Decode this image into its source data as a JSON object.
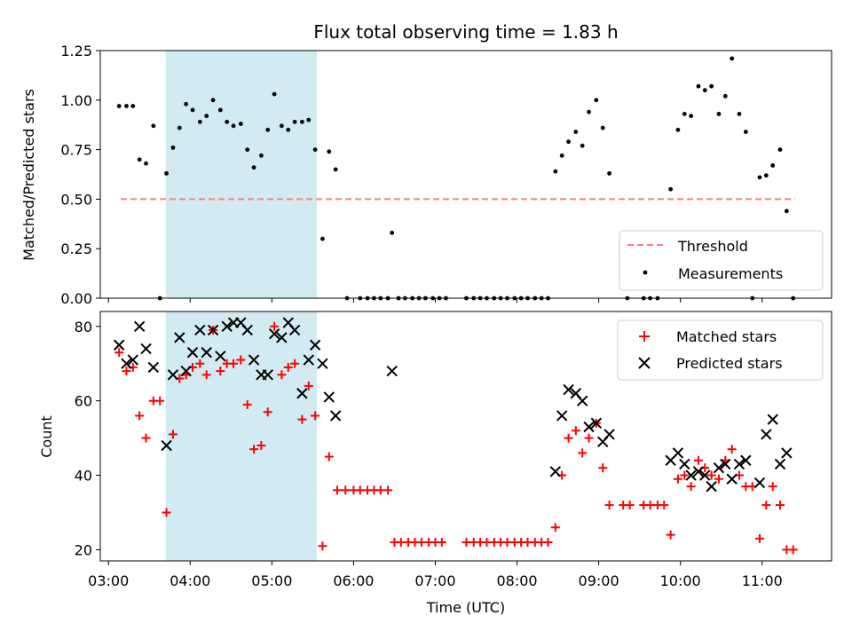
{
  "chart_data": [
    {
      "type": "scatter",
      "title": "Flux total observing time = 1.83 h",
      "xlabel": "",
      "ylabel": "Matched/Predicted stars",
      "ylim": [
        0,
        1.25
      ],
      "yticks": [
        "0.00",
        "0.25",
        "0.50",
        "0.75",
        "1.00",
        "1.25"
      ],
      "ytick_values": [
        0,
        0.25,
        0.5,
        0.75,
        1.0,
        1.25
      ],
      "xlim_hours": [
        2.9,
        11.85
      ],
      "shaded_range_hours": [
        3.7,
        5.55
      ],
      "shade_color": "#add8e6",
      "legend_position": "lower-right",
      "threshold": {
        "name": "Threshold",
        "value": 0.5,
        "x_hours": [
          3.15,
          11.4
        ],
        "color": "#ff7f7f"
      },
      "measurements": {
        "name": "Measurements",
        "color": "#000000",
        "points": [
          [
            3.13,
            0.97
          ],
          [
            3.22,
            0.97
          ],
          [
            3.3,
            0.97
          ],
          [
            3.38,
            0.7
          ],
          [
            3.46,
            0.68
          ],
          [
            3.55,
            0.87
          ],
          [
            3.63,
            0.0
          ],
          [
            3.71,
            0.63
          ],
          [
            3.79,
            0.76
          ],
          [
            3.87,
            0.86
          ],
          [
            3.95,
            0.98
          ],
          [
            4.03,
            0.95
          ],
          [
            4.12,
            0.89
          ],
          [
            4.2,
            0.92
          ],
          [
            4.28,
            1.0
          ],
          [
            4.37,
            0.95
          ],
          [
            4.45,
            0.89
          ],
          [
            4.53,
            0.87
          ],
          [
            4.62,
            0.88
          ],
          [
            4.7,
            0.75
          ],
          [
            4.78,
            0.66
          ],
          [
            4.87,
            0.72
          ],
          [
            4.95,
            0.85
          ],
          [
            5.03,
            1.03
          ],
          [
            5.12,
            0.87
          ],
          [
            5.2,
            0.85
          ],
          [
            5.28,
            0.89
          ],
          [
            5.37,
            0.89
          ],
          [
            5.45,
            0.9
          ],
          [
            5.53,
            0.75
          ],
          [
            5.62,
            0.3
          ],
          [
            5.7,
            0.74
          ],
          [
            5.78,
            0.65
          ],
          [
            5.92,
            0.0
          ],
          [
            6.08,
            0.0
          ],
          [
            6.17,
            0.0
          ],
          [
            6.25,
            0.0
          ],
          [
            6.33,
            0.0
          ],
          [
            6.42,
            0.0
          ],
          [
            6.47,
            0.33
          ],
          [
            6.55,
            0.0
          ],
          [
            6.63,
            0.0
          ],
          [
            6.72,
            0.0
          ],
          [
            6.8,
            0.0
          ],
          [
            6.88,
            0.0
          ],
          [
            6.97,
            0.0
          ],
          [
            7.05,
            0.0
          ],
          [
            7.13,
            0.0
          ],
          [
            7.38,
            0.0
          ],
          [
            7.47,
            0.0
          ],
          [
            7.55,
            0.0
          ],
          [
            7.63,
            0.0
          ],
          [
            7.72,
            0.0
          ],
          [
            7.8,
            0.0
          ],
          [
            7.88,
            0.0
          ],
          [
            7.97,
            0.0
          ],
          [
            8.05,
            0.0
          ],
          [
            8.13,
            0.0
          ],
          [
            8.22,
            0.0
          ],
          [
            8.3,
            0.0
          ],
          [
            8.38,
            0.0
          ],
          [
            8.47,
            0.64
          ],
          [
            8.55,
            0.72
          ],
          [
            8.63,
            0.79
          ],
          [
            8.72,
            0.84
          ],
          [
            8.8,
            0.77
          ],
          [
            8.88,
            0.94
          ],
          [
            8.97,
            1.0
          ],
          [
            9.05,
            0.86
          ],
          [
            9.13,
            0.63
          ],
          [
            9.35,
            0.0
          ],
          [
            9.55,
            0.0
          ],
          [
            9.63,
            0.0
          ],
          [
            9.72,
            0.0
          ],
          [
            9.88,
            0.55
          ],
          [
            9.97,
            0.85
          ],
          [
            10.05,
            0.93
          ],
          [
            10.13,
            0.92
          ],
          [
            10.22,
            1.07
          ],
          [
            10.3,
            1.05
          ],
          [
            10.38,
            1.07
          ],
          [
            10.47,
            0.93
          ],
          [
            10.55,
            1.02
          ],
          [
            10.63,
            1.21
          ],
          [
            10.72,
            0.93
          ],
          [
            10.8,
            0.84
          ],
          [
            10.88,
            0.0
          ],
          [
            10.97,
            0.61
          ],
          [
            11.05,
            0.62
          ],
          [
            11.13,
            0.67
          ],
          [
            11.22,
            0.75
          ],
          [
            11.3,
            0.44
          ],
          [
            11.38,
            0.0
          ]
        ]
      }
    },
    {
      "type": "scatter",
      "xlabel": "Time (UTC)",
      "ylabel": "Count",
      "ylim": [
        17,
        84
      ],
      "yticks": [
        "20",
        "40",
        "60",
        "80"
      ],
      "ytick_values": [
        20,
        40,
        60,
        80
      ],
      "xticks": [
        "03:00",
        "04:00",
        "05:00",
        "06:00",
        "07:00",
        "08:00",
        "09:00",
        "10:00",
        "11:00"
      ],
      "xtick_values_hours": [
        3,
        4,
        5,
        6,
        7,
        8,
        9,
        10,
        11
      ],
      "legend_position": "upper-right",
      "matched": {
        "name": "Matched stars",
        "color": "#ff0000",
        "points": [
          [
            3.13,
            73
          ],
          [
            3.22,
            68
          ],
          [
            3.3,
            69
          ],
          [
            3.38,
            56
          ],
          [
            3.46,
            50
          ],
          [
            3.55,
            60
          ],
          [
            3.63,
            60
          ],
          [
            3.71,
            30
          ],
          [
            3.79,
            51
          ],
          [
            3.87,
            66
          ],
          [
            3.95,
            67
          ],
          [
            4.03,
            69
          ],
          [
            4.12,
            70
          ],
          [
            4.2,
            67
          ],
          [
            4.28,
            79
          ],
          [
            4.37,
            68
          ],
          [
            4.45,
            70
          ],
          [
            4.53,
            70
          ],
          [
            4.62,
            71
          ],
          [
            4.7,
            59
          ],
          [
            4.78,
            47
          ],
          [
            4.87,
            48
          ],
          [
            4.95,
            57
          ],
          [
            5.03,
            80
          ],
          [
            5.12,
            67
          ],
          [
            5.2,
            69
          ],
          [
            5.28,
            70
          ],
          [
            5.37,
            55
          ],
          [
            5.45,
            64
          ],
          [
            5.53,
            56
          ],
          [
            5.62,
            21
          ],
          [
            5.7,
            45
          ],
          [
            5.8,
            36
          ],
          [
            5.9,
            36
          ],
          [
            6.0,
            36
          ],
          [
            6.08,
            36
          ],
          [
            6.17,
            36
          ],
          [
            6.25,
            36
          ],
          [
            6.33,
            36
          ],
          [
            6.42,
            36
          ],
          [
            6.5,
            22
          ],
          [
            6.58,
            22
          ],
          [
            6.67,
            22
          ],
          [
            6.75,
            22
          ],
          [
            6.83,
            22
          ],
          [
            6.92,
            22
          ],
          [
            7.0,
            22
          ],
          [
            7.08,
            22
          ],
          [
            7.38,
            22
          ],
          [
            7.47,
            22
          ],
          [
            7.55,
            22
          ],
          [
            7.63,
            22
          ],
          [
            7.72,
            22
          ],
          [
            7.8,
            22
          ],
          [
            7.88,
            22
          ],
          [
            7.97,
            22
          ],
          [
            8.05,
            22
          ],
          [
            8.13,
            22
          ],
          [
            8.22,
            22
          ],
          [
            8.3,
            22
          ],
          [
            8.38,
            22
          ],
          [
            8.47,
            26
          ],
          [
            8.55,
            40
          ],
          [
            8.63,
            50
          ],
          [
            8.72,
            52
          ],
          [
            8.8,
            46
          ],
          [
            8.88,
            50
          ],
          [
            8.97,
            54
          ],
          [
            9.05,
            42
          ],
          [
            9.13,
            32
          ],
          [
            9.3,
            32
          ],
          [
            9.38,
            32
          ],
          [
            9.55,
            32
          ],
          [
            9.63,
            32
          ],
          [
            9.72,
            32
          ],
          [
            9.8,
            32
          ],
          [
            9.88,
            24
          ],
          [
            9.97,
            39
          ],
          [
            10.05,
            40
          ],
          [
            10.13,
            37
          ],
          [
            10.22,
            44
          ],
          [
            10.3,
            42
          ],
          [
            10.38,
            40
          ],
          [
            10.47,
            39
          ],
          [
            10.55,
            44
          ],
          [
            10.63,
            47
          ],
          [
            10.72,
            40
          ],
          [
            10.8,
            37
          ],
          [
            10.88,
            37
          ],
          [
            10.97,
            23
          ],
          [
            11.05,
            32
          ],
          [
            11.13,
            37
          ],
          [
            11.22,
            32
          ],
          [
            11.3,
            20
          ],
          [
            11.38,
            20
          ]
        ]
      },
      "predicted": {
        "name": "Predicted stars",
        "color": "#000000",
        "points": [
          [
            3.13,
            75
          ],
          [
            3.22,
            70
          ],
          [
            3.3,
            71
          ],
          [
            3.38,
            80
          ],
          [
            3.46,
            74
          ],
          [
            3.55,
            69
          ],
          [
            3.71,
            48
          ],
          [
            3.79,
            67
          ],
          [
            3.87,
            77
          ],
          [
            3.95,
            68
          ],
          [
            4.03,
            73
          ],
          [
            4.12,
            79
          ],
          [
            4.2,
            73
          ],
          [
            4.28,
            79
          ],
          [
            4.37,
            72
          ],
          [
            4.45,
            80
          ],
          [
            4.53,
            81
          ],
          [
            4.62,
            81
          ],
          [
            4.7,
            79
          ],
          [
            4.78,
            71
          ],
          [
            4.87,
            67
          ],
          [
            4.95,
            67
          ],
          [
            5.03,
            78
          ],
          [
            5.12,
            77
          ],
          [
            5.2,
            81
          ],
          [
            5.28,
            79
          ],
          [
            5.37,
            62
          ],
          [
            5.45,
            71
          ],
          [
            5.53,
            75
          ],
          [
            5.62,
            70
          ],
          [
            5.7,
            61
          ],
          [
            5.78,
            56
          ],
          [
            6.47,
            68
          ],
          [
            8.47,
            41
          ],
          [
            8.55,
            56
          ],
          [
            8.63,
            63
          ],
          [
            8.72,
            62
          ],
          [
            8.8,
            60
          ],
          [
            8.88,
            53
          ],
          [
            8.97,
            54
          ],
          [
            9.05,
            49
          ],
          [
            9.13,
            51
          ],
          [
            9.88,
            44
          ],
          [
            9.97,
            46
          ],
          [
            10.05,
            43
          ],
          [
            10.13,
            40
          ],
          [
            10.22,
            41
          ],
          [
            10.3,
            40
          ],
          [
            10.38,
            37
          ],
          [
            10.47,
            42
          ],
          [
            10.55,
            43
          ],
          [
            10.63,
            39
          ],
          [
            10.72,
            43
          ],
          [
            10.8,
            44
          ],
          [
            10.97,
            38
          ],
          [
            11.05,
            51
          ],
          [
            11.13,
            55
          ],
          [
            11.22,
            43
          ],
          [
            11.3,
            46
          ]
        ]
      }
    }
  ]
}
